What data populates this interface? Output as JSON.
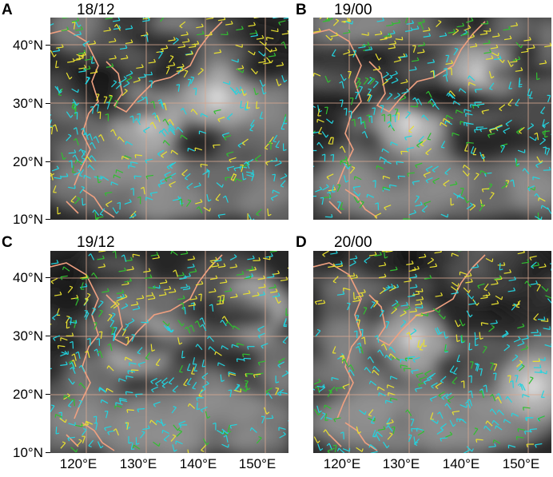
{
  "panels": [
    {
      "letter": "A",
      "time": "18/12"
    },
    {
      "letter": "B",
      "time": "19/00"
    },
    {
      "letter": "C",
      "time": "19/12"
    },
    {
      "letter": "D",
      "time": "20/00"
    }
  ],
  "lat_labels": [
    "40°N",
    "30°N",
    "20°N",
    "10°N"
  ],
  "lon_labels": [
    "120°E",
    "130°E",
    "140°E",
    "150°E"
  ],
  "colors": {
    "coastline": "#f0a080",
    "grid": "#d8a890",
    "wind_cyan": "#22d4e0",
    "wind_yellow": "#e8e030",
    "wind_green": "#30c030"
  }
}
